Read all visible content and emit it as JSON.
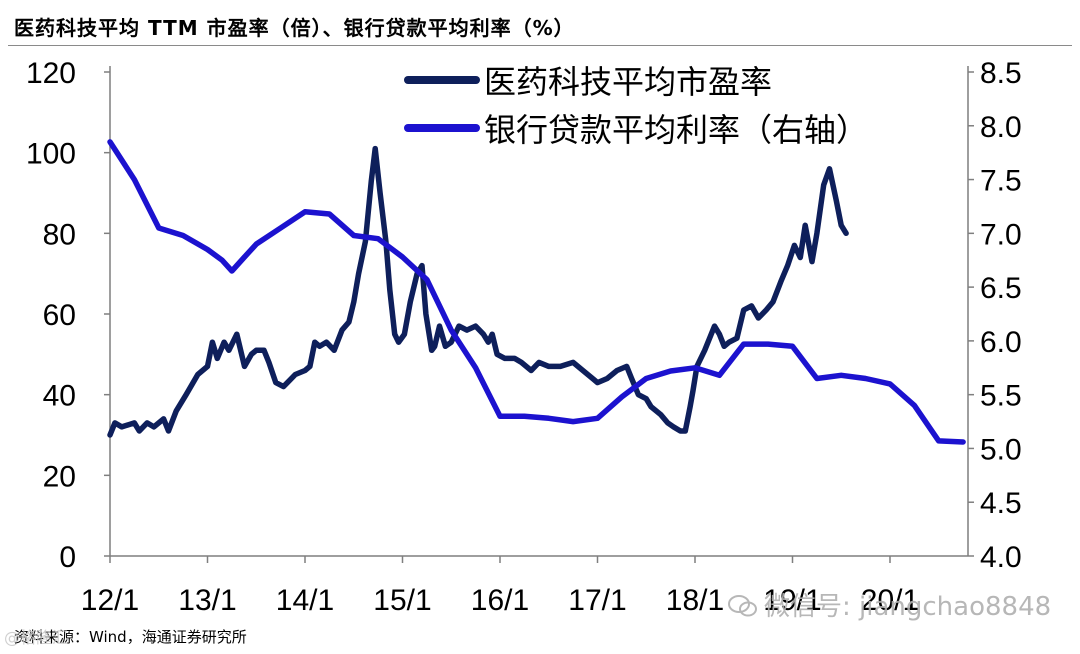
{
  "title": "医药科技平均 TTM 市盈率（倍）、银行贷款平均利率（%）",
  "source": "资料来源：Wind，海通证券研究所",
  "watermark": "微信号: jiangchao8848",
  "watermark_left": "@格隆汇",
  "chart_data": {
    "type": "line",
    "title": "医药科技平均 TTM 市盈率（倍）、银行贷款平均利率（%）",
    "x_ticks": [
      "12/1",
      "13/1",
      "14/1",
      "15/1",
      "16/1",
      "17/1",
      "18/1",
      "19/1",
      "20/1"
    ],
    "y_left": {
      "min": 0,
      "max": 120,
      "ticks": [
        0,
        20,
        40,
        60,
        80,
        100,
        120
      ]
    },
    "y_right": {
      "min": 4.0,
      "max": 8.5,
      "ticks": [
        "4.0",
        "4.5",
        "5.0",
        "5.5",
        "6.0",
        "6.5",
        "7.0",
        "7.5",
        "8.0",
        "8.5"
      ]
    },
    "legend_position": "top-center",
    "grid": false,
    "series": [
      {
        "name": "医药科技平均市盈率",
        "axis": "left",
        "color": "#0e1f5b",
        "points": [
          [
            0.0,
            30
          ],
          [
            0.05,
            33
          ],
          [
            0.12,
            32
          ],
          [
            0.25,
            33
          ],
          [
            0.3,
            31
          ],
          [
            0.38,
            33
          ],
          [
            0.45,
            32
          ],
          [
            0.55,
            34
          ],
          [
            0.6,
            31
          ],
          [
            0.68,
            36
          ],
          [
            0.78,
            40
          ],
          [
            0.9,
            45
          ],
          [
            1.0,
            47
          ],
          [
            1.05,
            53
          ],
          [
            1.1,
            49
          ],
          [
            1.17,
            53
          ],
          [
            1.22,
            51
          ],
          [
            1.3,
            55
          ],
          [
            1.33,
            52
          ],
          [
            1.38,
            47
          ],
          [
            1.45,
            50
          ],
          [
            1.5,
            51
          ],
          [
            1.58,
            51
          ],
          [
            1.63,
            48
          ],
          [
            1.7,
            43
          ],
          [
            1.78,
            42
          ],
          [
            1.9,
            45
          ],
          [
            2.0,
            46
          ],
          [
            2.05,
            47
          ],
          [
            2.1,
            53
          ],
          [
            2.15,
            52
          ],
          [
            2.22,
            53
          ],
          [
            2.3,
            51
          ],
          [
            2.38,
            56
          ],
          [
            2.45,
            58
          ],
          [
            2.5,
            63
          ],
          [
            2.55,
            70
          ],
          [
            2.62,
            78
          ],
          [
            2.68,
            93
          ],
          [
            2.72,
            101
          ],
          [
            2.77,
            90
          ],
          [
            2.83,
            78
          ],
          [
            2.87,
            66
          ],
          [
            2.92,
            55
          ],
          [
            2.96,
            53
          ],
          [
            3.02,
            55
          ],
          [
            3.08,
            63
          ],
          [
            3.15,
            70
          ],
          [
            3.2,
            72
          ],
          [
            3.24,
            60
          ],
          [
            3.3,
            51
          ],
          [
            3.33,
            52
          ],
          [
            3.38,
            57
          ],
          [
            3.44,
            52
          ],
          [
            3.5,
            53
          ],
          [
            3.58,
            57
          ],
          [
            3.66,
            56
          ],
          [
            3.75,
            57
          ],
          [
            3.83,
            55
          ],
          [
            3.88,
            53
          ],
          [
            3.92,
            55
          ],
          [
            3.97,
            50
          ],
          [
            4.05,
            49
          ],
          [
            4.15,
            49
          ],
          [
            4.22,
            48
          ],
          [
            4.32,
            46
          ],
          [
            4.4,
            48
          ],
          [
            4.5,
            47
          ],
          [
            4.62,
            47
          ],
          [
            4.75,
            48
          ],
          [
            4.85,
            46
          ],
          [
            4.95,
            44
          ],
          [
            5.0,
            43
          ],
          [
            5.1,
            44
          ],
          [
            5.2,
            46
          ],
          [
            5.3,
            47
          ],
          [
            5.35,
            44
          ],
          [
            5.42,
            40
          ],
          [
            5.5,
            39
          ],
          [
            5.55,
            37
          ],
          [
            5.65,
            35
          ],
          [
            5.72,
            33
          ],
          [
            5.78,
            32
          ],
          [
            5.85,
            31
          ],
          [
            5.9,
            31
          ],
          [
            5.95,
            37
          ],
          [
            5.98,
            41
          ],
          [
            6.02,
            47
          ],
          [
            6.1,
            51
          ],
          [
            6.2,
            57
          ],
          [
            6.25,
            55
          ],
          [
            6.3,
            52
          ],
          [
            6.35,
            53
          ],
          [
            6.43,
            54
          ],
          [
            6.5,
            61
          ],
          [
            6.58,
            62
          ],
          [
            6.65,
            59
          ],
          [
            6.73,
            61
          ],
          [
            6.8,
            63
          ],
          [
            6.88,
            68
          ],
          [
            6.95,
            72
          ],
          [
            7.02,
            77
          ],
          [
            7.08,
            74
          ],
          [
            7.13,
            82
          ],
          [
            7.2,
            73
          ],
          [
            7.25,
            80
          ],
          [
            7.32,
            92
          ],
          [
            7.38,
            96
          ],
          [
            7.45,
            88
          ],
          [
            7.5,
            82
          ],
          [
            7.55,
            80
          ]
        ]
      },
      {
        "name": "银行贷款平均利率（右轴）",
        "axis": "right",
        "color": "#1c12cf",
        "points": [
          [
            0.0,
            7.85
          ],
          [
            0.25,
            7.5
          ],
          [
            0.5,
            7.05
          ],
          [
            0.75,
            6.98
          ],
          [
            1.0,
            6.85
          ],
          [
            1.15,
            6.75
          ],
          [
            1.25,
            6.65
          ],
          [
            1.38,
            6.78
          ],
          [
            1.5,
            6.9
          ],
          [
            1.75,
            7.05
          ],
          [
            2.0,
            7.2
          ],
          [
            2.25,
            7.18
          ],
          [
            2.5,
            6.98
          ],
          [
            2.75,
            6.95
          ],
          [
            3.0,
            6.78
          ],
          [
            3.25,
            6.57
          ],
          [
            3.5,
            6.1
          ],
          [
            3.75,
            5.75
          ],
          [
            4.0,
            5.3
          ],
          [
            4.25,
            5.3
          ],
          [
            4.5,
            5.28
          ],
          [
            4.75,
            5.25
          ],
          [
            5.0,
            5.28
          ],
          [
            5.25,
            5.48
          ],
          [
            5.5,
            5.65
          ],
          [
            5.75,
            5.72
          ],
          [
            6.0,
            5.75
          ],
          [
            6.25,
            5.68
          ],
          [
            6.5,
            5.97
          ],
          [
            6.75,
            5.97
          ],
          [
            7.0,
            5.95
          ],
          [
            7.25,
            5.65
          ],
          [
            7.5,
            5.68
          ],
          [
            7.75,
            5.65
          ],
          [
            8.0,
            5.6
          ],
          [
            8.25,
            5.4
          ],
          [
            8.5,
            5.07
          ],
          [
            8.75,
            5.06
          ]
        ]
      }
    ]
  }
}
